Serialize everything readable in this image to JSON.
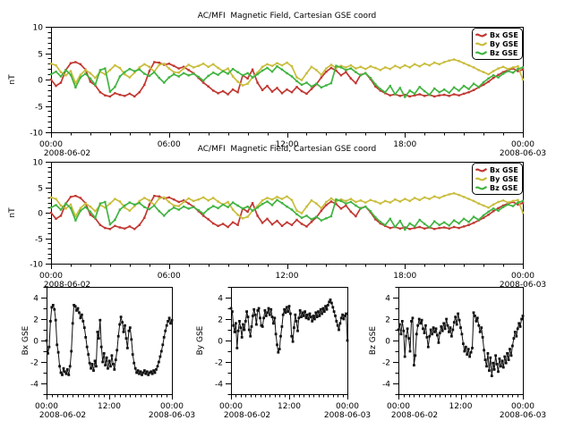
{
  "page": {
    "background": "#ffffff"
  },
  "labels": {
    "title": "AC/MFI  Magnetic Field, Cartesian GSE coord",
    "y_axis_top_panels": "nT",
    "bx": "Bx GSE",
    "by": "By GSE",
    "bz": "Bz GSE",
    "date_start": "2008-06-02",
    "date_end": "2008-06-03"
  },
  "colors": {
    "bx": "#c13832",
    "by": "#c9bd3c",
    "bz": "#41b441",
    "mono": "#111111",
    "axis": "#000000"
  },
  "legend": {
    "entries": [
      {
        "label": "Bx GSE",
        "series": "bx"
      },
      {
        "label": "By GSE",
        "series": "by"
      },
      {
        "label": "Bz GSE",
        "series": "bz"
      }
    ]
  },
  "chart_data": {
    "type": "line",
    "x_unit": "hours since 2008-06-02 00:00",
    "x_start_hours": 0,
    "x_step_hours": 0.25,
    "n_points": 97,
    "series": [
      {
        "name": "Bx GSE",
        "color_key": "bx",
        "values": [
          0.0,
          -1.2,
          -0.6,
          1.8,
          3.1,
          3.3,
          2.9,
          1.9,
          -0.4,
          -1.1,
          -2.4,
          -3.0,
          -3.2,
          -2.6,
          -2.9,
          -3.1,
          -2.7,
          -3.2,
          -2.4,
          -1.0,
          1.6,
          3.3,
          3.2,
          2.8,
          3.0,
          2.6,
          2.1,
          2.4,
          1.8,
          1.2,
          0.3,
          -0.6,
          -1.3,
          -2.1,
          -2.6,
          -2.2,
          -2.8,
          -1.9,
          -2.4,
          0.8,
          0.2,
          1.9,
          -0.6,
          -2.0,
          -1.2,
          -2.3,
          -1.6,
          -2.6,
          -1.9,
          -2.4,
          -1.4,
          -2.2,
          -2.7,
          -1.8,
          -0.9,
          0.4,
          1.5,
          2.2,
          1.7,
          0.8,
          1.4,
          0.2,
          -0.7,
          0.9,
          1.2,
          0.1,
          -1.3,
          -2.1,
          -2.6,
          -3.0,
          -2.8,
          -3.1,
          -2.9,
          -3.2,
          -3.0,
          -2.8,
          -3.1,
          -2.9,
          -3.2,
          -3.0,
          -2.9,
          -3.1,
          -2.8,
          -3.0,
          -2.7,
          -2.4,
          -2.0,
          -1.5,
          -1.0,
          -0.4,
          0.3,
          0.9,
          1.4,
          1.8,
          2.1,
          1.6,
          1.9
        ]
      },
      {
        "name": "By GSE",
        "color_key": "by",
        "values": [
          3.0,
          2.7,
          1.4,
          0.8,
          1.6,
          -0.7,
          0.9,
          1.8,
          1.2,
          0.3,
          1.5,
          1.0,
          1.8,
          2.7,
          2.2,
          1.0,
          0.4,
          1.3,
          2.3,
          2.9,
          2.4,
          1.5,
          2.8,
          3.0,
          2.1,
          1.4,
          1.3,
          2.1,
          2.8,
          2.3,
          2.6,
          3.0,
          2.4,
          2.9,
          2.2,
          1.6,
          2.1,
          0.6,
          -0.4,
          -1.1,
          -0.8,
          0.4,
          1.3,
          2.4,
          2.9,
          2.6,
          3.1,
          2.7,
          3.2,
          2.5,
          0.4,
          -0.1,
          1.2,
          2.4,
          1.8,
          0.9,
          2.1,
          2.8,
          2.2,
          2.6,
          2.3,
          2.7,
          2.1,
          2.4,
          2.0,
          2.5,
          2.2,
          1.8,
          2.3,
          2.0,
          2.6,
          2.2,
          2.7,
          2.3,
          2.9,
          2.5,
          3.0,
          2.7,
          3.2,
          2.9,
          3.3,
          3.6,
          3.8,
          3.5,
          3.1,
          2.7,
          2.3,
          1.8,
          1.4,
          1.0,
          1.6,
          2.1,
          2.4,
          2.0,
          2.3,
          2.5,
          0.0
        ]
      },
      {
        "name": "Bz GSE",
        "color_key": "bz",
        "values": [
          1.0,
          1.5,
          0.6,
          1.8,
          0.9,
          -1.5,
          0.4,
          1.1,
          0.2,
          -1.0,
          1.8,
          2.1,
          -2.3,
          -1.4,
          0.6,
          1.4,
          2.0,
          1.6,
          1.9,
          1.1,
          0.7,
          1.4,
          0.3,
          -0.6,
          0.4,
          1.0,
          0.6,
          1.2,
          0.8,
          1.1,
          0.5,
          -0.2,
          0.7,
          1.3,
          0.9,
          1.6,
          1.1,
          2.0,
          1.4,
          0.8,
          1.2,
          0.4,
          1.0,
          1.7,
          2.2,
          1.5,
          2.5,
          1.9,
          1.2,
          0.6,
          -0.3,
          -1.0,
          -0.6,
          -1.3,
          -0.8,
          -1.5,
          -1.1,
          -0.7,
          2.6,
          2.3,
          1.8,
          2.1,
          1.4,
          0.8,
          1.2,
          0.3,
          -0.9,
          -1.8,
          -2.4,
          -1.2,
          -2.8,
          -1.6,
          -3.3,
          -2.1,
          -2.7,
          -1.4,
          -2.2,
          -2.9,
          -1.7,
          -2.4,
          -1.9,
          -2.5,
          -1.5,
          -2.1,
          -1.2,
          -1.8,
          -0.8,
          -1.4,
          -0.5,
          0.2,
          0.8,
          0.4,
          1.1,
          1.6,
          1.3,
          2.0,
          2.3
        ]
      }
    ],
    "panels": [
      {
        "id": "overview-1",
        "title": "AC/MFI  Magnetic Field, Cartesian GSE coord",
        "ylabel": "nT",
        "ylim": [
          -10,
          10
        ],
        "yticks_major": [
          -10,
          -5,
          0,
          5,
          10
        ],
        "ytick_minor_step": 1,
        "series": [
          "Bx GSE",
          "By GSE",
          "Bz GSE"
        ],
        "mono": false,
        "xticks_hours": [
          0,
          6,
          12,
          18,
          24
        ],
        "xtick_labels": [
          "00:00",
          "06:00",
          "12:00",
          "18:00",
          "00:00"
        ],
        "xtick_minor_step_hours": 1,
        "xdate_left": "2008-06-02",
        "xdate_right": "2008-06-03",
        "legend": true,
        "legend_position": "top-right",
        "grid": false
      },
      {
        "id": "overview-2",
        "title": "AC/MFI  Magnetic Field, Cartesian GSE coord",
        "ylabel": "nT",
        "ylim": [
          -10,
          10
        ],
        "yticks_major": [
          -10,
          -5,
          0,
          5,
          10
        ],
        "ytick_minor_step": 1,
        "series": [
          "Bx GSE",
          "By GSE",
          "Bz GSE"
        ],
        "mono": false,
        "xticks_hours": [
          0,
          6,
          12,
          18,
          24
        ],
        "xtick_labels": [
          "00:00",
          "06:00",
          "12:00",
          "18:00",
          "00:00"
        ],
        "xtick_minor_step_hours": 1,
        "xdate_left": "2008-06-02",
        "xdate_right": "2008-06-03",
        "legend": true,
        "legend_position": "top-right",
        "grid": false
      },
      {
        "id": "bx-panel",
        "ylabel": "Bx GSE",
        "ylim": [
          -5,
          5
        ],
        "yticks_major": [
          -4,
          -2,
          0,
          2,
          4
        ],
        "ytick_minor_step": 1,
        "series": [
          "Bx GSE"
        ],
        "mono": true,
        "xticks_hours": [
          0,
          12,
          24
        ],
        "xtick_labels": [
          "00:00",
          "12:00",
          "00:00"
        ],
        "xtick_minor_step_hours": 1,
        "xdate_left": "2008-06-02",
        "xdate_right": "2008-06-03",
        "legend": false,
        "grid": false
      },
      {
        "id": "by-panel",
        "ylabel": "By GSE",
        "ylim": [
          -5,
          5
        ],
        "yticks_major": [
          -4,
          -2,
          0,
          2,
          4
        ],
        "ytick_minor_step": 1,
        "series": [
          "By GSE"
        ],
        "mono": true,
        "xticks_hours": [
          0,
          12,
          24
        ],
        "xtick_labels": [
          "00:00",
          "12:00",
          "00:00"
        ],
        "xtick_minor_step_hours": 1,
        "xdate_left": "2008-06-02",
        "xdate_right": "2008-06-03",
        "legend": false,
        "grid": false
      },
      {
        "id": "bz-panel",
        "ylabel": "Bz GSE",
        "ylim": [
          -5,
          5
        ],
        "yticks_major": [
          -4,
          -2,
          0,
          2,
          4
        ],
        "ytick_minor_step": 1,
        "series": [
          "Bz GSE"
        ],
        "mono": true,
        "xticks_hours": [
          0,
          12,
          24
        ],
        "xtick_labels": [
          "00:00",
          "12:00",
          "00:00"
        ],
        "xtick_minor_step_hours": 1,
        "xdate_left": "2008-06-02",
        "xdate_right": "2008-06-03",
        "legend": false,
        "grid": false
      }
    ]
  }
}
